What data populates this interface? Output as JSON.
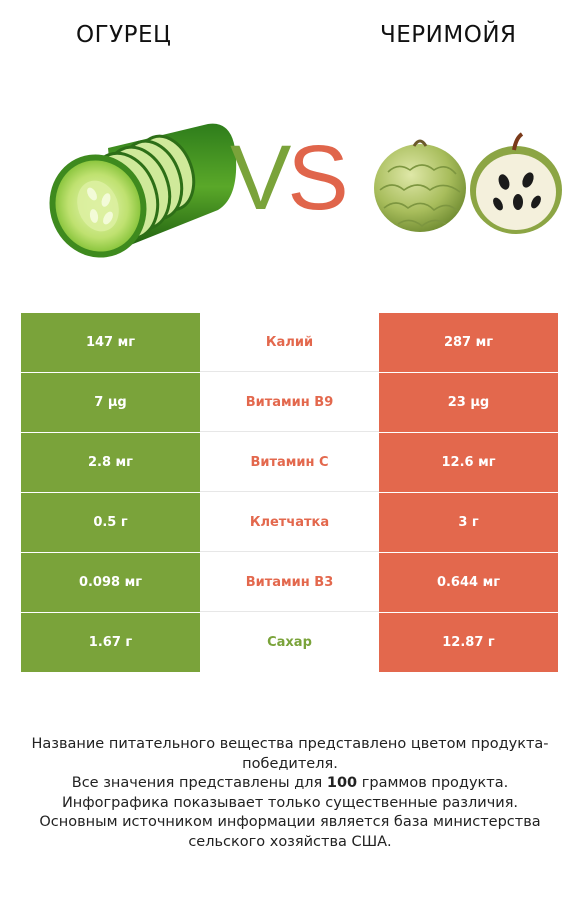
{
  "header": {
    "left_title": "ОГУРЕЦ",
    "right_title": "ЧЕРИМОЙЯ",
    "vs_v": "V",
    "vs_s": "S"
  },
  "colors": {
    "left_accent": "#7aa33a",
    "right_accent": "#e3684d"
  },
  "rows": [
    {
      "left": "147 мг",
      "nutrient": "Калий",
      "right": "287 мг",
      "winner": "right"
    },
    {
      "left": "7 µg",
      "nutrient": "Витамин B9",
      "right": "23 µg",
      "winner": "right"
    },
    {
      "left": "2.8 мг",
      "nutrient": "Витамин C",
      "right": "12.6 мг",
      "winner": "right"
    },
    {
      "left": "0.5 г",
      "nutrient": "Клетчатка",
      "right": "3 г",
      "winner": "right"
    },
    {
      "left": "0.098 мг",
      "nutrient": "Витамин B3",
      "right": "0.644 мг",
      "winner": "right"
    },
    {
      "left": "1.67 г",
      "nutrient": "Сахар",
      "right": "12.87 г",
      "winner": "left"
    }
  ],
  "notes": {
    "line1": "Название питательного вещества представлено цветом продукта-победителя.",
    "line2_pre": "Все значения представлены для ",
    "line2_bold": "100",
    "line2_post": " граммов продукта.",
    "line3": "Инфографика показывает только существенные различия.",
    "line4": "Основным источником информации является база министерства сельского хозяйства США."
  }
}
